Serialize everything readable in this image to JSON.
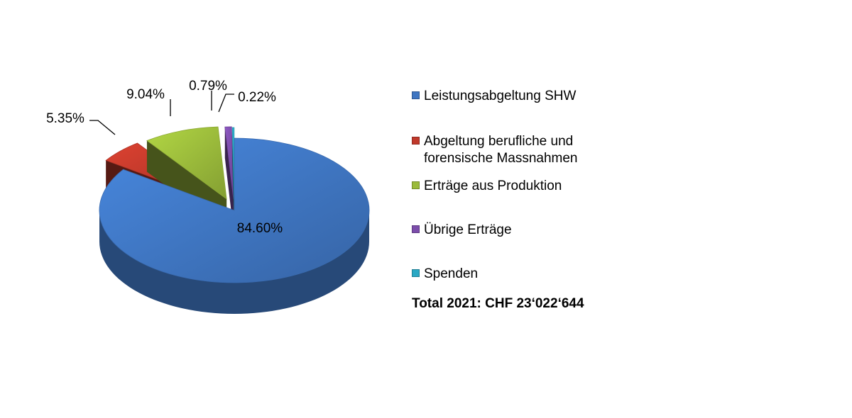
{
  "chart_data": {
    "type": "pie",
    "categories": [
      "Leistungsabgeltung SHW",
      "Abgeltung berufliche und forensische Massnahmen",
      "Erträge aus Produktion",
      "Übrige Erträge",
      "Spenden"
    ],
    "values": [
      84.6,
      5.35,
      9.04,
      0.79,
      0.22
    ],
    "data_labels": [
      "84.60%",
      "5.35%",
      "9.04%",
      "0.79%",
      "0.22%"
    ],
    "colors": [
      "#3f76c2",
      "#c0392b",
      "#9bbb3b",
      "#7c4dab",
      "#2aa8c4"
    ],
    "style": "3d-exploded",
    "legend_position": "right"
  },
  "legend": {
    "items": [
      {
        "label": "Leistungsabgeltung SHW",
        "color": "#3f76c2"
      },
      {
        "label": "Abgeltung berufliche und\nforensische Massnahmen",
        "color": "#c0392b"
      },
      {
        "label": "Erträge aus Produktion",
        "color": "#9bbb3b"
      },
      {
        "label": "Übrige Erträge",
        "color": "#7c4dab"
      },
      {
        "label": "Spenden",
        "color": "#2aa8c4"
      }
    ],
    "total": "Total 2021: CHF 23‘022‘644"
  }
}
